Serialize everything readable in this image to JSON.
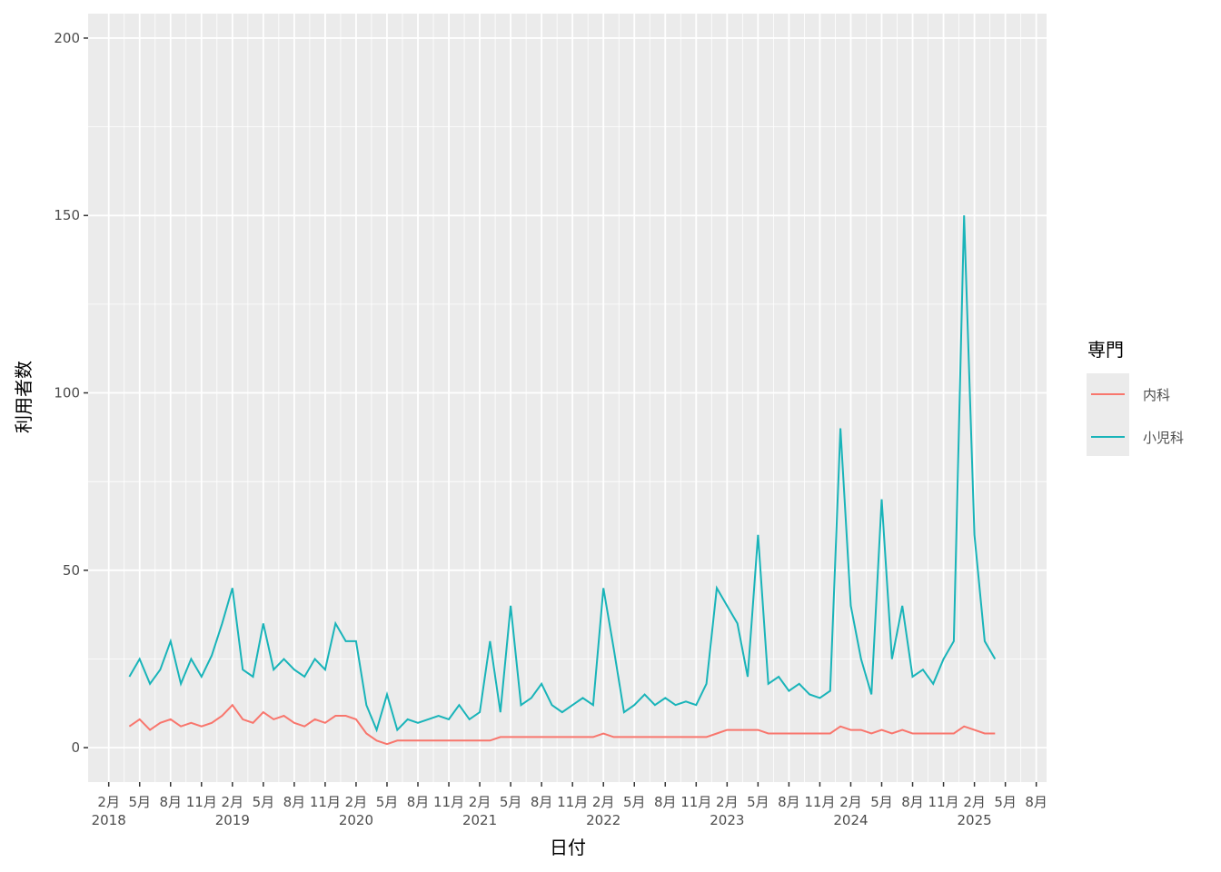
{
  "chart_data": {
    "type": "line",
    "x_label": "日付",
    "y_label": "利用者数",
    "legend_title": "専門",
    "legend_position": "right",
    "grid": true,
    "x": [
      "2018-04",
      "2018-05",
      "2018-06",
      "2018-07",
      "2018-08",
      "2018-09",
      "2018-10",
      "2018-11",
      "2018-12",
      "2019-01",
      "2019-02",
      "2019-03",
      "2019-04",
      "2019-05",
      "2019-06",
      "2019-07",
      "2019-08",
      "2019-09",
      "2019-10",
      "2019-11",
      "2019-12",
      "2020-01",
      "2020-02",
      "2020-03",
      "2020-04",
      "2020-05",
      "2020-06",
      "2020-07",
      "2020-08",
      "2020-09",
      "2020-10",
      "2020-11",
      "2020-12",
      "2021-01",
      "2021-02",
      "2021-03",
      "2021-04",
      "2021-05",
      "2021-06",
      "2021-07",
      "2021-08",
      "2021-09",
      "2021-10",
      "2021-11",
      "2021-12",
      "2022-01",
      "2022-02",
      "2022-03",
      "2022-04",
      "2022-05",
      "2022-06",
      "2022-07",
      "2022-08",
      "2022-09",
      "2022-10",
      "2022-11",
      "2022-12",
      "2023-01",
      "2023-02",
      "2023-03",
      "2023-04",
      "2023-05",
      "2023-06",
      "2023-07",
      "2023-08",
      "2023-09",
      "2023-10",
      "2023-11",
      "2023-12",
      "2024-01",
      "2024-02",
      "2024-03",
      "2024-04",
      "2024-05",
      "2024-06",
      "2024-07",
      "2024-08",
      "2024-09",
      "2024-10",
      "2024-11",
      "2024-12",
      "2025-01",
      "2025-02",
      "2025-03",
      "2025-04"
    ],
    "series": [
      {
        "name": "内科",
        "color": "#f8766d",
        "values": [
          6,
          8,
          5,
          7,
          8,
          6,
          7,
          6,
          7,
          9,
          12,
          8,
          7,
          10,
          8,
          9,
          7,
          6,
          8,
          7,
          9,
          9,
          8,
          4,
          2,
          1,
          2,
          2,
          2,
          2,
          2,
          2,
          2,
          2,
          2,
          2,
          3,
          3,
          3,
          3,
          3,
          3,
          3,
          3,
          3,
          3,
          4,
          3,
          3,
          3,
          3,
          3,
          3,
          3,
          3,
          3,
          3,
          4,
          5,
          5,
          5,
          5,
          4,
          4,
          4,
          4,
          4,
          4,
          4,
          6,
          5,
          5,
          4,
          5,
          4,
          5,
          4,
          4,
          4,
          4,
          4,
          6,
          5,
          4,
          4
        ]
      },
      {
        "name": "小児科",
        "color": "#19b4b9",
        "values": [
          20,
          25,
          18,
          22,
          30,
          18,
          25,
          20,
          26,
          35,
          45,
          22,
          20,
          35,
          22,
          25,
          22,
          20,
          25,
          22,
          35,
          30,
          30,
          12,
          5,
          15,
          5,
          8,
          7,
          8,
          9,
          8,
          12,
          8,
          10,
          30,
          10,
          40,
          12,
          14,
          18,
          12,
          10,
          12,
          14,
          12,
          45,
          28,
          10,
          12,
          15,
          12,
          14,
          12,
          13,
          12,
          18,
          45,
          40,
          35,
          20,
          60,
          18,
          20,
          16,
          18,
          15,
          14,
          16,
          90,
          40,
          25,
          15,
          70,
          25,
          40,
          20,
          22,
          18,
          25,
          30,
          150,
          60,
          30,
          25
        ]
      }
    ],
    "xlim": [
      "2017-12",
      "2025-09"
    ],
    "xticks": [
      {
        "value": "2018-02",
        "label": "2月\n2018"
      },
      {
        "value": "2018-05",
        "label": "5月"
      },
      {
        "value": "2018-08",
        "label": "8月"
      },
      {
        "value": "2018-11",
        "label": "11月"
      },
      {
        "value": "2019-02",
        "label": "2月\n2019"
      },
      {
        "value": "2019-05",
        "label": "5月"
      },
      {
        "value": "2019-08",
        "label": "8月"
      },
      {
        "value": "2019-11",
        "label": "11月"
      },
      {
        "value": "2020-02",
        "label": "2月\n2020"
      },
      {
        "value": "2020-05",
        "label": "5月"
      },
      {
        "value": "2020-08",
        "label": "8月"
      },
      {
        "value": "2020-11",
        "label": "11月"
      },
      {
        "value": "2021-02",
        "label": "2月\n2021"
      },
      {
        "value": "2021-05",
        "label": "5月"
      },
      {
        "value": "2021-08",
        "label": "8月"
      },
      {
        "value": "2021-11",
        "label": "11月"
      },
      {
        "value": "2022-02",
        "label": "2月\n2022"
      },
      {
        "value": "2022-05",
        "label": "5月"
      },
      {
        "value": "2022-08",
        "label": "8月"
      },
      {
        "value": "2022-11",
        "label": "11月"
      },
      {
        "value": "2023-02",
        "label": "2月\n2023"
      },
      {
        "value": "2023-05",
        "label": "5月"
      },
      {
        "value": "2023-08",
        "label": "8月"
      },
      {
        "value": "2023-11",
        "label": "11月"
      },
      {
        "value": "2024-02",
        "label": "2月\n2024"
      },
      {
        "value": "2024-05",
        "label": "5月"
      },
      {
        "value": "2024-08",
        "label": "8月"
      },
      {
        "value": "2024-11",
        "label": "11月"
      },
      {
        "value": "2025-02",
        "label": "2月\n2025"
      },
      {
        "value": "2025-05",
        "label": "5月"
      },
      {
        "value": "2025-08",
        "label": "8月"
      }
    ],
    "ylim": [
      -9.7,
      206.9
    ],
    "yticks": [
      0,
      50,
      100,
      150,
      200
    ]
  }
}
